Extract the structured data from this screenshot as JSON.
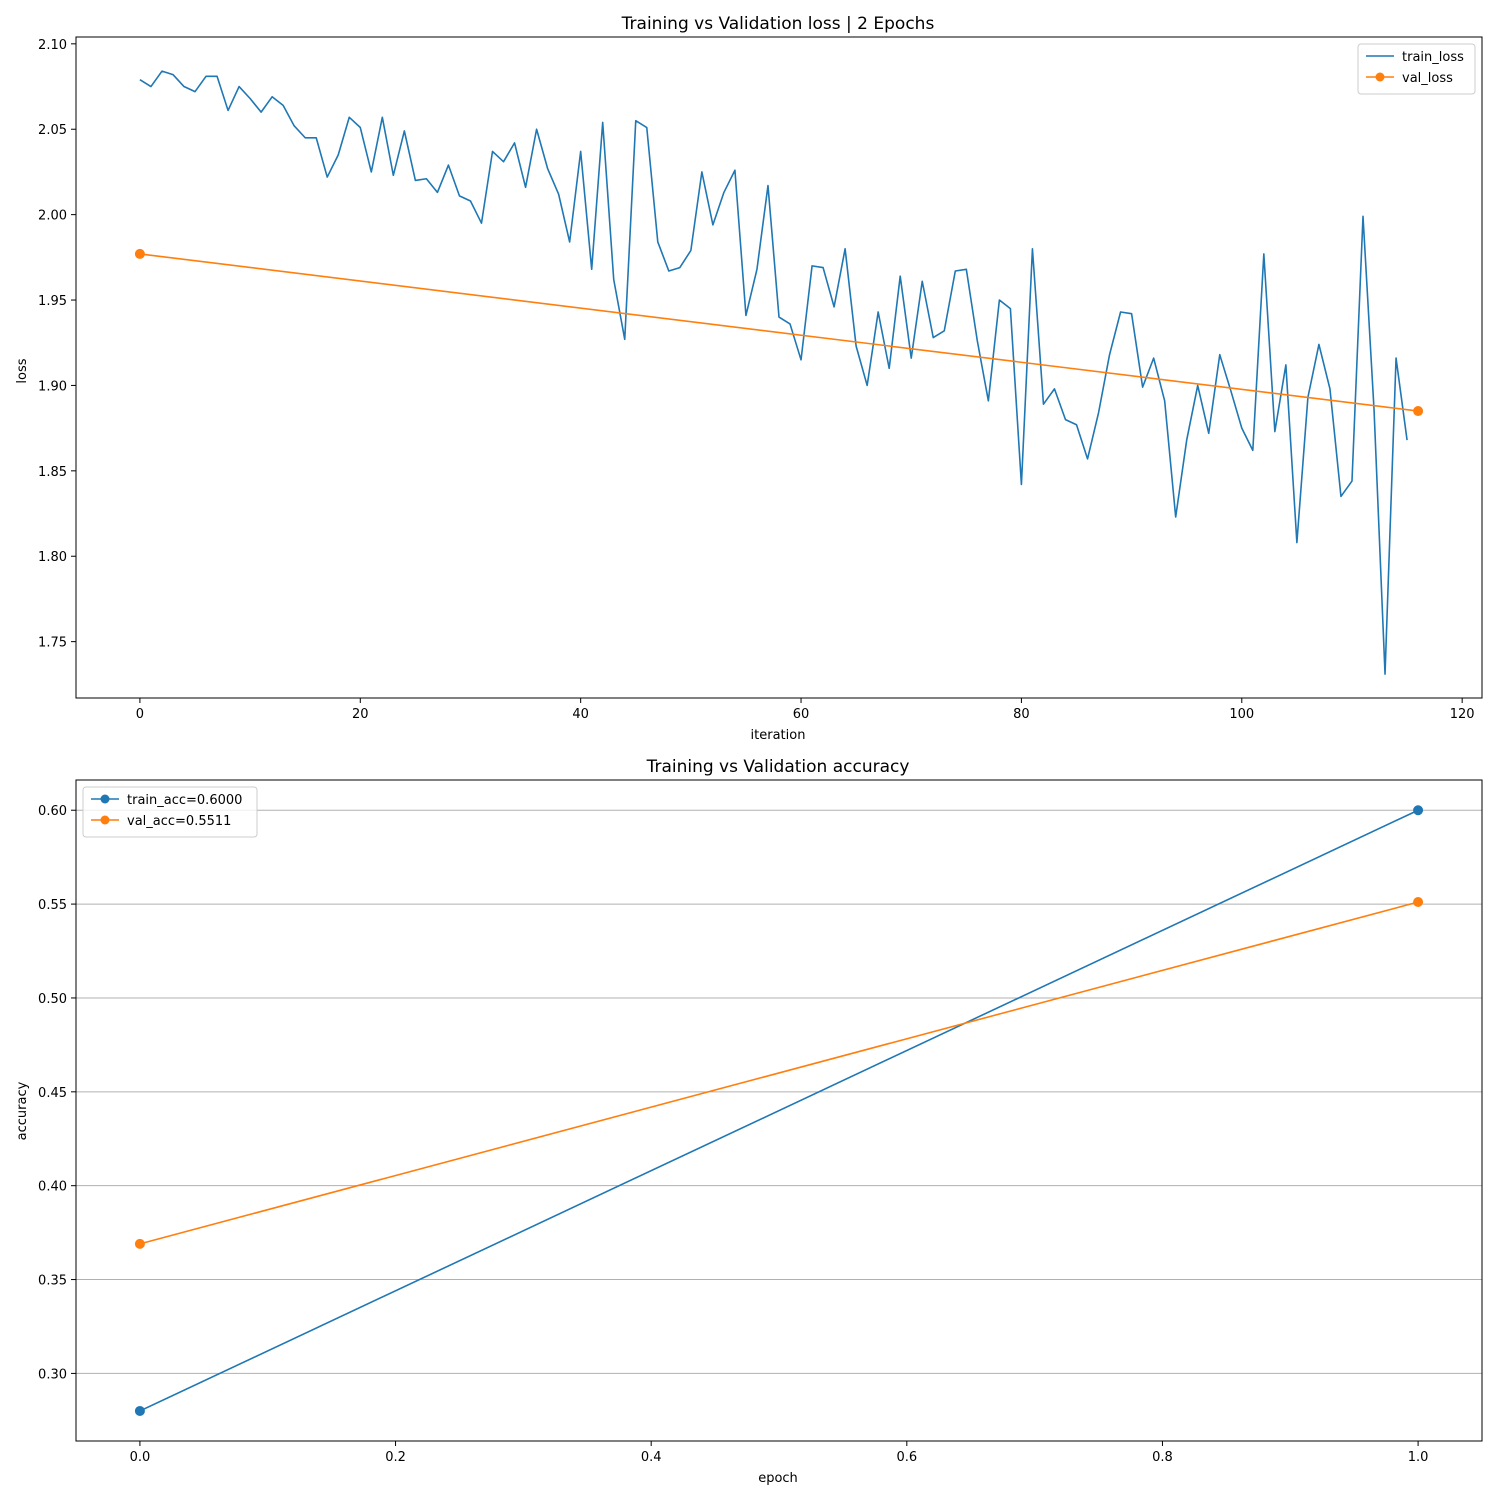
{
  "chart_data": [
    {
      "type": "line",
      "title": "Training vs Validation loss | 2 Epochs",
      "xlabel": "iteration",
      "ylabel": "loss",
      "xlim": [
        -5.8,
        121.8
      ],
      "ylim": [
        1.717,
        2.104
      ],
      "xticks": [
        0,
        20,
        40,
        60,
        80,
        100,
        120
      ],
      "yticks": [
        1.75,
        1.8,
        1.85,
        1.9,
        1.95,
        2.0,
        2.05,
        2.1
      ],
      "grid": false,
      "legend_position": "top-right",
      "series": [
        {
          "name": "train_loss",
          "color": "#1f77b4",
          "marker": "none",
          "x": [
            0,
            1,
            2,
            3,
            4,
            5,
            6,
            7,
            8,
            9,
            10,
            11,
            12,
            13,
            14,
            15,
            16,
            17,
            18,
            19,
            20,
            21,
            22,
            23,
            24,
            25,
            26,
            27,
            28,
            29,
            30,
            31,
            32,
            33,
            34,
            35,
            36,
            37,
            38,
            39,
            40,
            41,
            42,
            43,
            44,
            45,
            46,
            47,
            48,
            49,
            50,
            51,
            52,
            53,
            54,
            55,
            56,
            57,
            58,
            59,
            60,
            61,
            62,
            63,
            64,
            65,
            66,
            67,
            68,
            69,
            70,
            71,
            72,
            73,
            74,
            75,
            76,
            77,
            78,
            79,
            80,
            81,
            82,
            83,
            84,
            85,
            86,
            87,
            88,
            89,
            90,
            91,
            92,
            93,
            94,
            95,
            96,
            97,
            98,
            99,
            100,
            101,
            102,
            103,
            104,
            105,
            106,
            107,
            108,
            109,
            110,
            111,
            112,
            113,
            114,
            115
          ],
          "y": [
            2.079,
            2.075,
            2.084,
            2.082,
            2.075,
            2.072,
            2.081,
            2.081,
            2.061,
            2.075,
            2.068,
            2.06,
            2.069,
            2.064,
            2.052,
            2.045,
            2.045,
            2.022,
            2.035,
            2.057,
            2.051,
            2.025,
            2.057,
            2.023,
            2.049,
            2.02,
            2.021,
            2.013,
            2.029,
            2.011,
            2.008,
            1.995,
            2.037,
            2.031,
            2.042,
            2.016,
            2.05,
            2.027,
            2.012,
            1.984,
            2.037,
            1.968,
            2.054,
            1.962,
            1.927,
            2.055,
            2.051,
            1.984,
            1.967,
            1.969,
            1.979,
            2.025,
            1.994,
            2.013,
            2.026,
            1.941,
            1.968,
            2.017,
            1.94,
            1.936,
            1.915,
            1.97,
            1.969,
            1.946,
            1.98,
            1.923,
            1.9,
            1.943,
            1.91,
            1.964,
            1.916,
            1.961,
            1.928,
            1.932,
            1.967,
            1.968,
            1.926,
            1.891,
            1.95,
            1.945,
            1.842,
            1.98,
            1.889,
            1.898,
            1.88,
            1.877,
            1.857,
            1.884,
            1.918,
            1.943,
            1.942,
            1.899,
            1.916,
            1.891,
            1.823,
            1.868,
            1.9,
            1.872,
            1.918,
            1.897,
            1.875,
            1.862,
            1.977,
            1.873,
            1.912,
            1.808,
            1.893,
            1.924,
            1.898,
            1.835,
            1.844,
            1.999,
            1.886,
            1.731,
            1.916,
            1.868
          ]
        },
        {
          "name": "val_loss",
          "color": "#ff7f0e",
          "marker": "circle",
          "x": [
            0,
            116
          ],
          "y": [
            1.977,
            1.885
          ]
        }
      ]
    },
    {
      "type": "line",
      "title": "Training vs Validation accuracy",
      "xlabel": "epoch",
      "ylabel": "accuracy",
      "xlim": [
        -0.05,
        1.05
      ],
      "ylim": [
        0.264,
        0.6161
      ],
      "xticks": [
        0.0,
        0.2,
        0.4,
        0.6,
        0.8,
        1.0
      ],
      "yticks": [
        0.3,
        0.35,
        0.4,
        0.45,
        0.5,
        0.55,
        0.6
      ],
      "grid": "horizontal",
      "legend_position": "top-left",
      "series": [
        {
          "name": "train_acc=0.6000",
          "color": "#1f77b4",
          "marker": "circle",
          "x": [
            0,
            1
          ],
          "y": [
            0.28,
            0.6
          ]
        },
        {
          "name": "val_acc=0.5511",
          "color": "#ff7f0e",
          "marker": "circle",
          "x": [
            0,
            1
          ],
          "y": [
            0.369,
            0.5511
          ]
        }
      ]
    }
  ]
}
